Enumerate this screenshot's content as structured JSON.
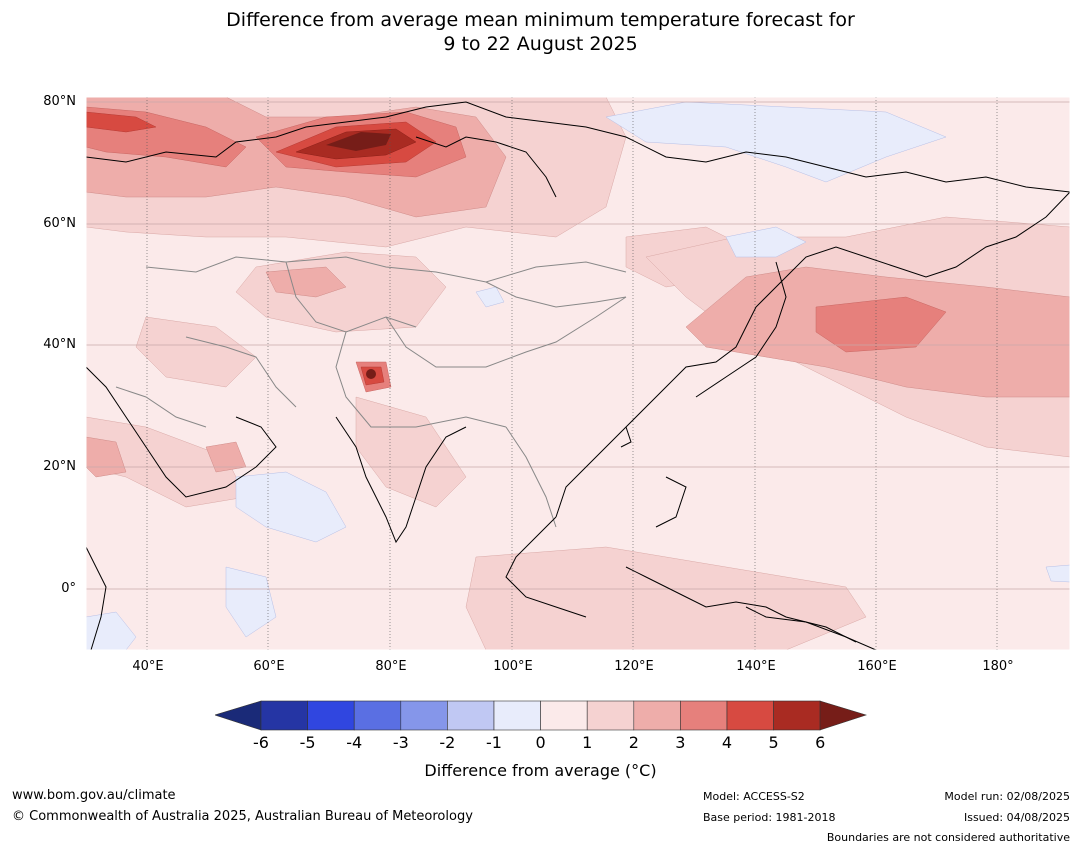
{
  "title_line1": "Difference from average mean minimum temperature forecast for",
  "title_line2": "9 to 22 August 2025",
  "map": {
    "lat_labels": [
      "80°N",
      "60°N",
      "40°N",
      "20°N",
      "0°"
    ],
    "lon_labels": [
      "40°E",
      "60°E",
      "80°E",
      "100°E",
      "120°E",
      "140°E",
      "160°E",
      "180°"
    ],
    "lat_range": [
      -10,
      80
    ],
    "lon_range": [
      30,
      191
    ],
    "colors": {
      "ocean_base": "#fbeaea",
      "c0_1": "#fbeaea",
      "c1_2": "#f5d2d1",
      "c2_3": "#eeadaa",
      "c3_4": "#e6807c",
      "c4_5": "#d74a41",
      "c5_6": "#a92b22",
      "c6p": "#761d18",
      "cm1_0": "#e8ecfb",
      "cm2_1": "#c0c8f3",
      "coast": "#000000",
      "border": "#888888"
    }
  },
  "colorbar": {
    "ticks": [
      "-6",
      "-5",
      "-4",
      "-3",
      "-2",
      "-1",
      "0",
      "1",
      "2",
      "3",
      "4",
      "5",
      "6"
    ],
    "colors": [
      "#2535a4",
      "#3046e0",
      "#5a6fe3",
      "#8596ea",
      "#c0c8f3",
      "#e8ecfb",
      "#fbeaea",
      "#f5d2d1",
      "#eeadaa",
      "#e6807c",
      "#d74a41",
      "#a92b22"
    ],
    "under_color": "#1a2a78",
    "over_color": "#761d18",
    "label": "Difference from average (°C)"
  },
  "footer": {
    "website": "www.bom.gov.au/climate",
    "copyright": "© Commonwealth of Australia 2025, Australian Bureau of Meteorology",
    "model": "Model: ACCESS-S2",
    "base_period": "Base period: 1981-2018",
    "model_run": "Model run: 02/08/2025",
    "issued": "Issued: 04/08/2025",
    "disclaimer": "Boundaries are not considered authoritative"
  }
}
